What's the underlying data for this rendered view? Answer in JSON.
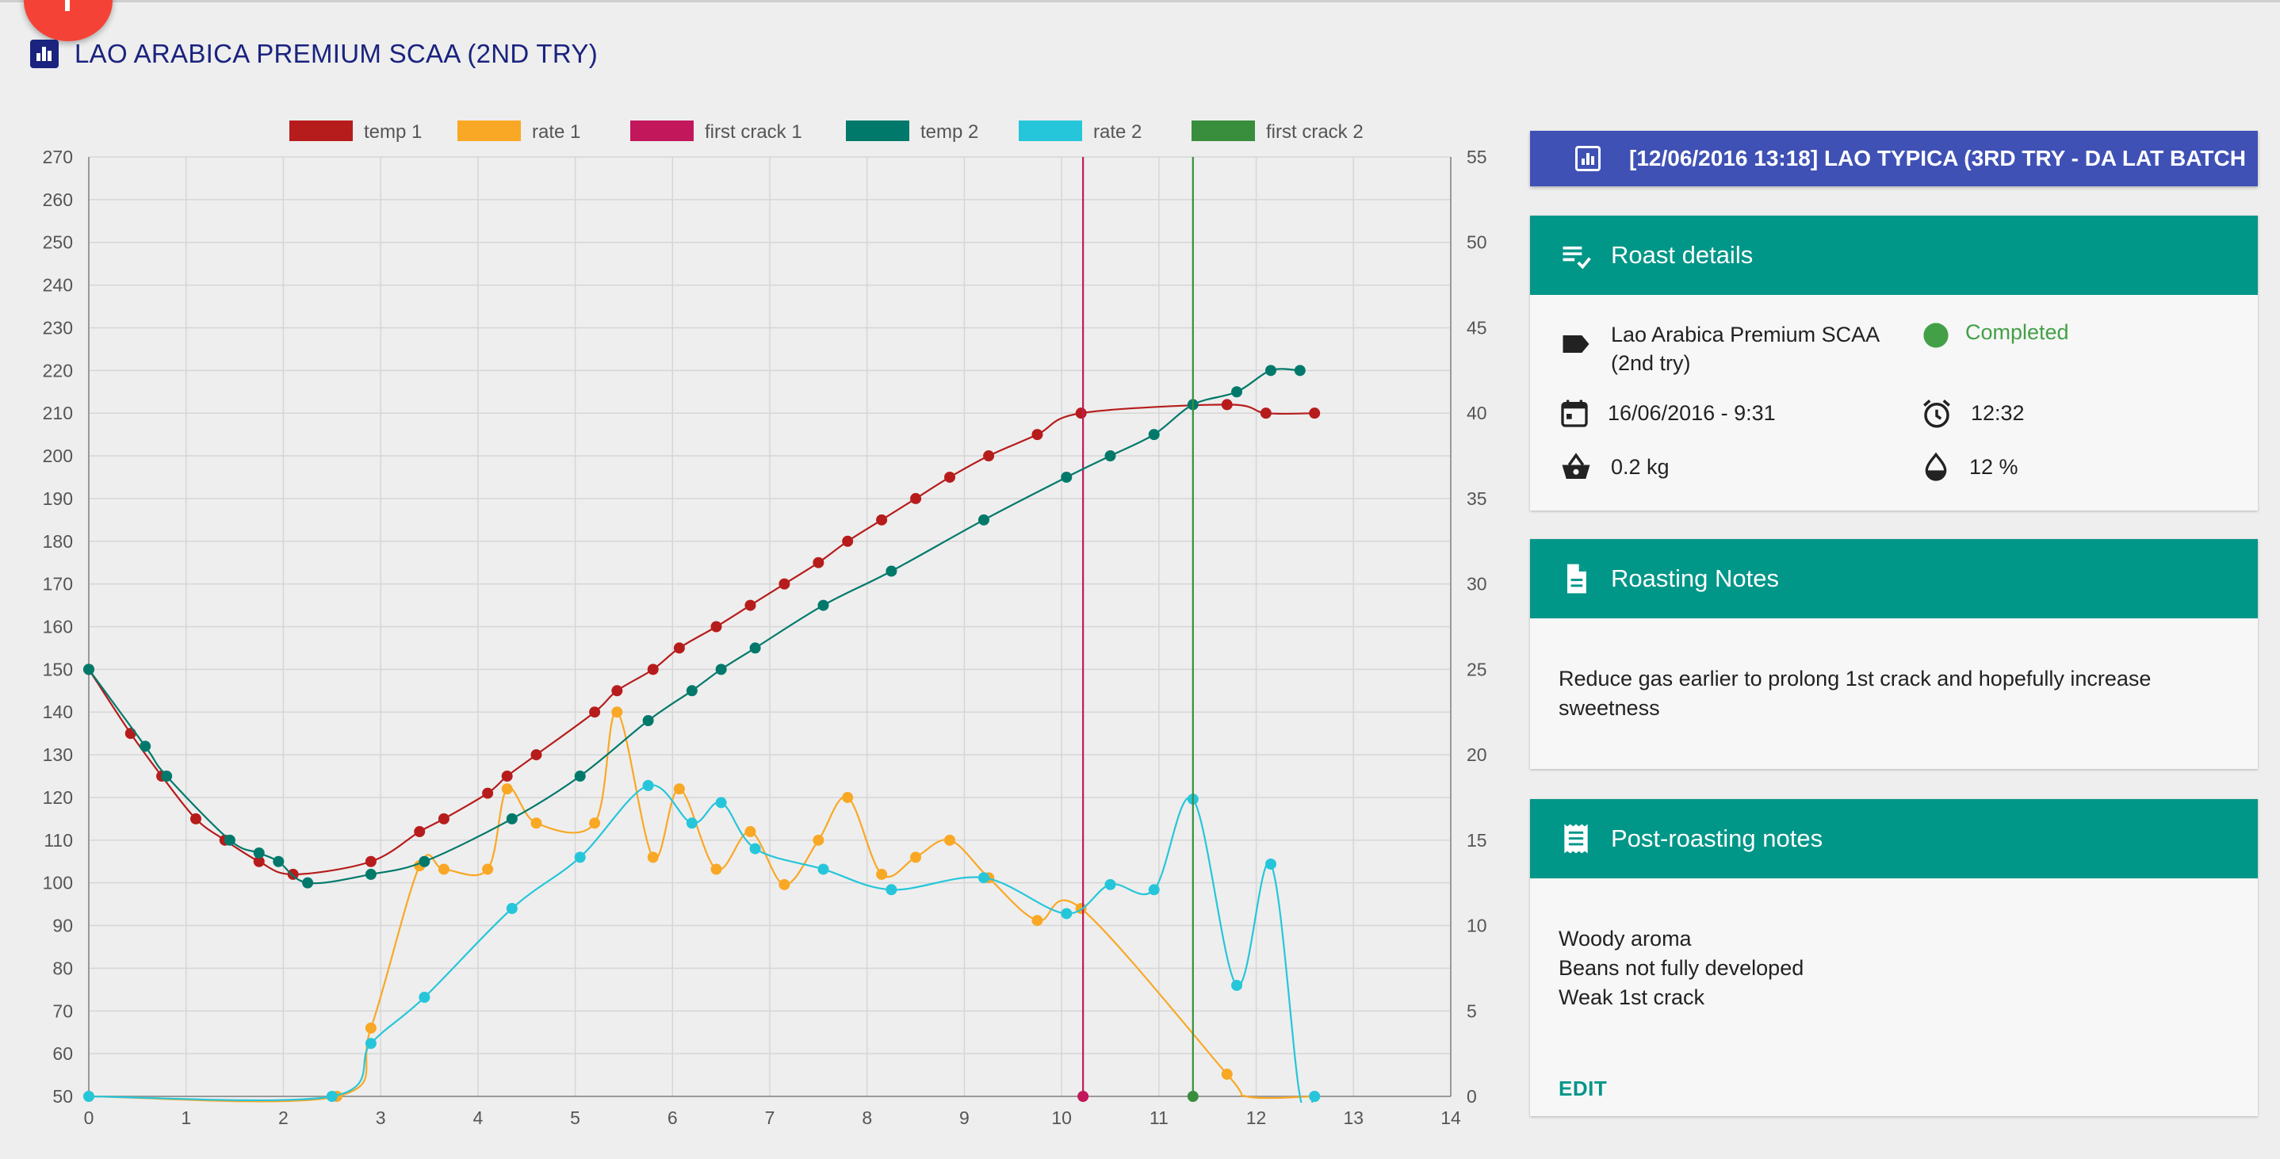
{
  "page": {
    "title": "LAO ARABICA PREMIUM SCAA (2ND TRY)",
    "title_icon": "bar-chart-icon",
    "fab_icon": "add-icon"
  },
  "comparison_tip": {
    "icon": "bar-chart-icon",
    "text": "[12/06/2016 13:18] LAO TYPICA (3RD TRY - DA LAT BATCH"
  },
  "roast_details": {
    "header": "Roast details",
    "header_icon": "playlist-check-icon",
    "bean": "Lao Arabica Premium SCAA (2nd try)",
    "bean_line1": "Lao Arabica Premium SCAA",
    "bean_line2": "(2nd try)",
    "bean_icon": "label-icon",
    "status": "Completed",
    "status_icon": "status-dot-icon",
    "date": "16/06/2016 - 9:31",
    "date_icon": "calendar-icon",
    "duration": "12:32",
    "duration_icon": "alarm-clock-icon",
    "weight": "0.2 kg",
    "weight_icon": "basket-icon",
    "moisture": "12 %",
    "moisture_icon": "water-drop-icon",
    "colors": {
      "status": "#43a047"
    }
  },
  "roasting_notes": {
    "header": "Roasting Notes",
    "header_icon": "document-icon",
    "text": "Reduce gas earlier to prolong 1st crack and hopefully increase sweetness",
    "line1": "Reduce gas earlier to prolong 1st crack and hopefully increase",
    "line2": "sweetness"
  },
  "post_roasting_notes": {
    "header": "Post-roasting notes",
    "header_icon": "receipt-icon",
    "line1": "Woody aroma",
    "line2": "Beans not fully developed",
    "line3": "Weak 1st crack",
    "edit_label": "EDIT"
  },
  "colors": {
    "accent": "#009688",
    "title": "#1a237e",
    "tip": "#3f51b5"
  },
  "chart_data": {
    "type": "line",
    "title": "",
    "xlabel": "",
    "ylabel": "",
    "xlim": [
      0,
      14
    ],
    "ylim_left": [
      50,
      270
    ],
    "ylim_right": [
      0,
      55
    ],
    "x_ticks": [
      0,
      1,
      2,
      3,
      4,
      5,
      6,
      7,
      8,
      9,
      10,
      11,
      12,
      13,
      14
    ],
    "y_left_ticks": [
      50,
      60,
      70,
      80,
      90,
      100,
      110,
      120,
      130,
      140,
      150,
      160,
      170,
      180,
      190,
      200,
      210,
      220,
      230,
      240,
      250,
      260,
      270
    ],
    "y_right_ticks": [
      0,
      5,
      10,
      15,
      20,
      25,
      30,
      35,
      40,
      45,
      50,
      55
    ],
    "grid": true,
    "legend_position": "top",
    "series": [
      {
        "name": "temp 1",
        "axis": "left",
        "color": "#b71c1c",
        "points": [
          [
            0,
            150
          ],
          [
            0.43,
            135
          ],
          [
            0.75,
            125
          ],
          [
            1.1,
            115
          ],
          [
            1.4,
            110
          ],
          [
            1.75,
            105
          ],
          [
            2.1,
            102
          ],
          [
            2.9,
            105
          ],
          [
            3.4,
            112
          ],
          [
            3.65,
            115
          ],
          [
            4.1,
            121
          ],
          [
            4.3,
            125
          ],
          [
            4.6,
            130
          ],
          [
            5.2,
            140
          ],
          [
            5.43,
            145
          ],
          [
            5.8,
            150
          ],
          [
            6.07,
            155
          ],
          [
            6.45,
            160
          ],
          [
            6.8,
            165
          ],
          [
            7.15,
            170
          ],
          [
            7.5,
            175
          ],
          [
            7.8,
            180
          ],
          [
            8.15,
            185
          ],
          [
            8.5,
            190
          ],
          [
            8.85,
            195
          ],
          [
            9.25,
            200
          ],
          [
            9.75,
            205
          ],
          [
            10.2,
            210
          ],
          [
            11.7,
            212
          ],
          [
            12.1,
            210
          ],
          [
            12.6,
            210
          ]
        ]
      },
      {
        "name": "rate 1",
        "axis": "right",
        "color": "#f9a825",
        "points": [
          [
            0,
            0
          ],
          [
            2.55,
            0
          ],
          [
            2.9,
            4
          ],
          [
            3.4,
            13.5
          ],
          [
            3.65,
            13.3
          ],
          [
            4.1,
            13.3
          ],
          [
            4.3,
            18
          ],
          [
            4.6,
            16
          ],
          [
            5.2,
            16
          ],
          [
            5.43,
            22.5
          ],
          [
            5.8,
            14
          ],
          [
            6.07,
            18
          ],
          [
            6.45,
            13.3
          ],
          [
            6.8,
            15.5
          ],
          [
            7.15,
            12.4
          ],
          [
            7.5,
            15
          ],
          [
            7.8,
            17.5
          ],
          [
            8.15,
            13
          ],
          [
            8.5,
            14
          ],
          [
            8.85,
            15
          ],
          [
            9.25,
            12.8
          ],
          [
            9.75,
            10.3
          ],
          [
            10.2,
            11
          ],
          [
            11.7,
            1.3
          ],
          [
            11.9,
            0
          ],
          [
            12.6,
            0
          ]
        ]
      },
      {
        "name": "first crack 1",
        "axis": "right",
        "color": "#c2185b",
        "x": 10.22
      },
      {
        "name": "temp 2",
        "axis": "left",
        "color": "#00796b",
        "points": [
          [
            0,
            150
          ],
          [
            0.58,
            132
          ],
          [
            0.8,
            125
          ],
          [
            1.45,
            110
          ],
          [
            1.75,
            107
          ],
          [
            1.95,
            105
          ],
          [
            2.25,
            100
          ],
          [
            2.9,
            102
          ],
          [
            3.45,
            105
          ],
          [
            4.35,
            115
          ],
          [
            5.05,
            125
          ],
          [
            5.75,
            138
          ],
          [
            6.2,
            145
          ],
          [
            6.5,
            150
          ],
          [
            6.85,
            155
          ],
          [
            7.55,
            165
          ],
          [
            8.25,
            173
          ],
          [
            9.2,
            185
          ],
          [
            10.05,
            195
          ],
          [
            10.5,
            200
          ],
          [
            10.95,
            205
          ],
          [
            11.35,
            212
          ],
          [
            11.8,
            215
          ],
          [
            12.15,
            220
          ],
          [
            12.45,
            220
          ]
        ]
      },
      {
        "name": "rate 2",
        "axis": "right",
        "color": "#26c6da",
        "points": [
          [
            0,
            0
          ],
          [
            2.5,
            0
          ],
          [
            2.9,
            3.1
          ],
          [
            3.45,
            5.8
          ],
          [
            4.35,
            11
          ],
          [
            5.05,
            14
          ],
          [
            5.75,
            18.2
          ],
          [
            6.2,
            16
          ],
          [
            6.5,
            17.2
          ],
          [
            6.85,
            14.5
          ],
          [
            7.55,
            13.3
          ],
          [
            8.25,
            12.1
          ],
          [
            9.2,
            12.8
          ],
          [
            10.05,
            10.7
          ],
          [
            10.5,
            12.4
          ],
          [
            10.95,
            12.1
          ],
          [
            11.35,
            17.4
          ],
          [
            11.8,
            6.5
          ],
          [
            12.15,
            13.6
          ],
          [
            12.45,
            0
          ],
          [
            12.6,
            0
          ]
        ]
      },
      {
        "name": "first crack 2",
        "axis": "right",
        "color": "#388e3c",
        "x": 11.35
      }
    ]
  }
}
